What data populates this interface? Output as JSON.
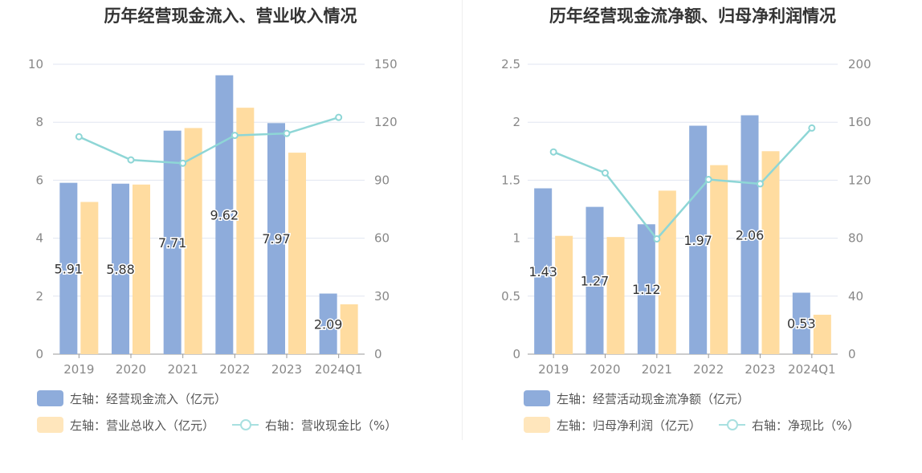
{
  "colors": {
    "bar1": "#8eacdb",
    "bar2": "#ffdca0",
    "line": "#8ed6d6",
    "axis": "#999999",
    "grid": "#e1e6f0",
    "tick": "#888888"
  },
  "chart_data": [
    {
      "type": "bar",
      "title": "历年经营现金流入、营业收入情况",
      "categories": [
        "2019",
        "2020",
        "2021",
        "2022",
        "2023",
        "2024Q1"
      ],
      "y_left": {
        "min": 0,
        "max": 10,
        "ticks": [
          "0",
          "2",
          "4",
          "6",
          "8",
          "10"
        ]
      },
      "y_right": {
        "min": 0,
        "max": 150,
        "ticks": [
          "0",
          "30",
          "60",
          "90",
          "120",
          "150"
        ]
      },
      "series": [
        {
          "name": "左轴：经营现金流入（亿元）",
          "kind": "bar",
          "axis": "left",
          "values": [
            5.91,
            5.88,
            7.71,
            9.62,
            7.97,
            2.09
          ],
          "labels": [
            "5.91",
            "5.88",
            "7.71",
            "9.62",
            "7.97",
            "2.09"
          ]
        },
        {
          "name": "左轴：营业总收入（亿元）",
          "kind": "bar",
          "axis": "left",
          "values": [
            5.25,
            5.85,
            7.8,
            8.5,
            6.95,
            1.72
          ]
        },
        {
          "name": "右轴：营收现金比（%）",
          "kind": "line",
          "axis": "right",
          "values": [
            112.5,
            100.5,
            98.8,
            113.2,
            114.2,
            122.5
          ]
        }
      ],
      "grid": true,
      "legend_position": "bottom-left"
    },
    {
      "type": "bar",
      "title": "历年经营现金流净额、归母净利润情况",
      "categories": [
        "2019",
        "2020",
        "2021",
        "2022",
        "2023",
        "2024Q1"
      ],
      "y_left": {
        "min": 0,
        "max": 2.5,
        "ticks": [
          "0",
          "0.5",
          "1",
          "1.5",
          "2",
          "2.5"
        ]
      },
      "y_right": {
        "min": 0,
        "max": 200,
        "ticks": [
          "0",
          "40",
          "80",
          "120",
          "160",
          "200"
        ]
      },
      "series": [
        {
          "name": "左轴：经营活动现金流净额（亿元）",
          "kind": "bar",
          "axis": "left",
          "values": [
            1.43,
            1.27,
            1.12,
            1.97,
            2.06,
            0.53
          ],
          "labels": [
            "1.43",
            "1.27",
            "1.12",
            "1.97",
            "2.06",
            "0.53"
          ]
        },
        {
          "name": "左轴：归母净利润（亿元）",
          "kind": "bar",
          "axis": "left",
          "values": [
            1.02,
            1.01,
            1.41,
            1.63,
            1.75,
            0.34
          ]
        },
        {
          "name": "右轴：净现比（%）",
          "kind": "line",
          "axis": "right",
          "values": [
            139.5,
            125,
            79.5,
            120.5,
            117.5,
            156
          ]
        }
      ],
      "grid": true,
      "legend_position": "bottom-left"
    }
  ]
}
